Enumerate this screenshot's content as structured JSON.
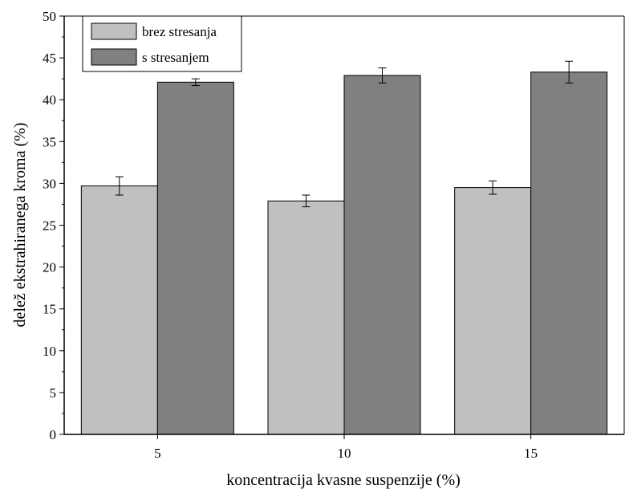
{
  "chart_data": {
    "type": "bar",
    "xlabel": "koncentracija kvasne suspenzije (%)",
    "ylabel": "delež ekstrahiranega kroma (%)",
    "categories": [
      "5",
      "10",
      "15"
    ],
    "ylim": [
      0,
      50
    ],
    "yticks": [
      0,
      5,
      10,
      15,
      20,
      25,
      30,
      35,
      40,
      45,
      50
    ],
    "grid": false,
    "legend_position": "top-left",
    "series": [
      {
        "name": "brez stresanja",
        "values": [
          29.7,
          27.9,
          29.5
        ],
        "errors": [
          1.1,
          0.7,
          0.8
        ],
        "color": "#c0c0c0"
      },
      {
        "name": "s stresanjem",
        "values": [
          42.1,
          42.9,
          43.3
        ],
        "errors": [
          0.4,
          0.9,
          1.3
        ],
        "color": "#808080"
      }
    ]
  }
}
